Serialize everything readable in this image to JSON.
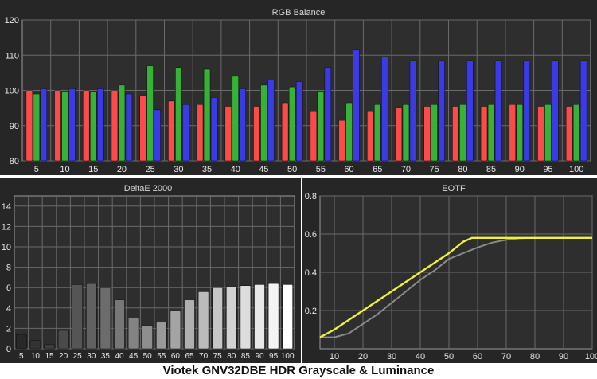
{
  "caption": "Viotek GNV32DBE HDR Grayscale & Luminance",
  "colors": {
    "panel_bg": "#262626",
    "plot_bg": "#2e2e2e",
    "grid": "#6a6a6a",
    "red": "#ff4a4a",
    "green": "#36b336",
    "blue": "#3a3ae6",
    "eotf_measured": "#f0f040",
    "eotf_target": "#8a8a8a"
  },
  "chart_data": [
    {
      "type": "bar",
      "title": "RGB Balance",
      "categories": [
        "5",
        "10",
        "15",
        "20",
        "25",
        "30",
        "35",
        "40",
        "45",
        "50",
        "55",
        "60",
        "65",
        "70",
        "75",
        "80",
        "85",
        "90",
        "95",
        "100"
      ],
      "ylim": [
        80,
        120
      ],
      "yticks": [
        80,
        90,
        100,
        110,
        120
      ],
      "grid": true,
      "series": [
        {
          "name": "",
          "color": "red",
          "values": [
            100,
            100,
            100,
            100,
            98.5,
            97,
            96,
            95.5,
            95.5,
            96.5,
            94,
            91.5,
            94,
            95,
            95.5,
            95.5,
            95.5,
            96,
            95.5,
            95.5
          ]
        },
        {
          "name": "",
          "color": "green",
          "values": [
            99,
            99.5,
            99.5,
            101.5,
            107,
            106.5,
            106,
            104,
            101.5,
            101,
            99.5,
            96.5,
            96,
            96,
            96,
            96,
            96,
            96,
            96,
            96
          ]
        },
        {
          "name": "",
          "color": "blue",
          "values": [
            100.5,
            100.5,
            100.5,
            99,
            94.5,
            96,
            98,
            100.5,
            103,
            102.5,
            106.5,
            111.5,
            109.5,
            108.5,
            108.5,
            108.5,
            108.5,
            108.5,
            108.5,
            108.5
          ]
        }
      ]
    },
    {
      "type": "bar",
      "title": "DeltaE 2000",
      "categories": [
        "5",
        "10",
        "15",
        "20",
        "25",
        "30",
        "35",
        "40",
        "45",
        "50",
        "55",
        "60",
        "65",
        "70",
        "75",
        "80",
        "85",
        "90",
        "95",
        "100"
      ],
      "values": [
        1.4,
        0.8,
        0.4,
        1.8,
        6.3,
        6.4,
        6.0,
        4.8,
        3.0,
        2.3,
        2.6,
        3.7,
        4.8,
        5.6,
        6.0,
        6.1,
        6.2,
        6.3,
        6.4,
        6.3
      ],
      "ylim": [
        0,
        15
      ],
      "yticks": [
        0,
        2,
        4,
        6,
        8,
        10,
        12,
        14
      ],
      "grid": true
    },
    {
      "type": "line",
      "title": "EOTF",
      "xlim": [
        5,
        100
      ],
      "xticks": [
        10,
        20,
        30,
        40,
        50,
        60,
        70,
        80,
        90,
        100
      ],
      "ylim": [
        0,
        0.8
      ],
      "yticks": [
        0.2,
        0.4,
        0.6,
        0.8
      ],
      "grid": true,
      "series": [
        {
          "name": "",
          "color": "eotf_measured",
          "x": [
            5,
            10,
            15,
            20,
            25,
            30,
            35,
            40,
            45,
            50,
            55,
            58,
            60,
            70,
            80,
            90,
            100
          ],
          "y": [
            0.06,
            0.1,
            0.15,
            0.2,
            0.25,
            0.3,
            0.35,
            0.4,
            0.45,
            0.5,
            0.56,
            0.58,
            0.58,
            0.58,
            0.58,
            0.58,
            0.58
          ]
        },
        {
          "name": "",
          "color": "eotf_target",
          "x": [
            5,
            10,
            15,
            20,
            25,
            30,
            35,
            40,
            45,
            50,
            55,
            60,
            65,
            70,
            75,
            80,
            90,
            100
          ],
          "y": [
            0.06,
            0.06,
            0.08,
            0.13,
            0.18,
            0.24,
            0.3,
            0.36,
            0.41,
            0.47,
            0.5,
            0.53,
            0.555,
            0.57,
            0.578,
            0.58,
            0.58,
            0.58
          ]
        }
      ]
    }
  ]
}
